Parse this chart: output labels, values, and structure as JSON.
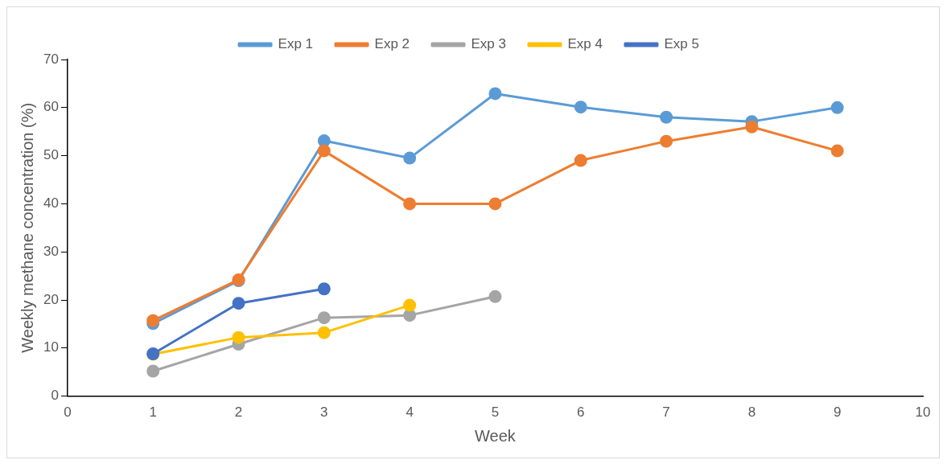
{
  "chart_data": {
    "type": "line",
    "xlabel": "Week",
    "ylabel": "Weekly methane concentration (%)",
    "xlim": [
      0,
      10
    ],
    "xticks": [
      0,
      1,
      2,
      3,
      4,
      5,
      6,
      7,
      8,
      9,
      10
    ],
    "ylim": [
      0,
      70
    ],
    "yticks": [
      0,
      10,
      20,
      30,
      40,
      50,
      60,
      70
    ],
    "grid": false,
    "legend": "top",
    "marker": "circle",
    "line_style": "solid",
    "series": [
      {
        "name": "Exp 1",
        "color": "#5b9bd5",
        "x": [
          1,
          2,
          3,
          4,
          5,
          6,
          7,
          8,
          9
        ],
        "values": [
          15.1,
          24,
          53.1,
          49.5,
          62.9,
          60.1,
          58,
          57.1,
          60
        ]
      },
      {
        "name": "Exp 2",
        "color": "#ed7d31",
        "x": [
          1,
          2,
          3,
          4,
          5,
          6,
          7,
          8,
          9
        ],
        "values": [
          15.7,
          24.2,
          51,
          40,
          40,
          49,
          53,
          56,
          51
        ]
      },
      {
        "name": "Exp 3",
        "color": "#a5a5a5",
        "x": [
          1,
          2,
          3,
          4,
          5
        ],
        "values": [
          5.2,
          10.8,
          16.3,
          16.8,
          20.7
        ]
      },
      {
        "name": "Exp 4",
        "color": "#ffc000",
        "x": [
          1,
          2,
          3,
          4
        ],
        "values": [
          8.7,
          12.2,
          13.2,
          18.9
        ]
      },
      {
        "name": "Exp 5",
        "color": "#4472c4",
        "x": [
          1,
          2,
          3
        ],
        "values": [
          8.8,
          19.3,
          22.3
        ]
      }
    ]
  }
}
